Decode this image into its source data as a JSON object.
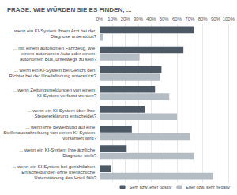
{
  "chart_data": {
    "type": "bar",
    "title": "FRAGE: WIE WÜRDEN SIE ES FINDEN, ...",
    "orientation": "horizontal",
    "categories": [
      "... wenn ein KI-System Ihrem Arzt bei der Diagnose unterstützt?",
      "... mit einem autonomen Fahrzeug, wie einem autonomen Auto oder einem autonomen Bus, unterwegs zu sein?",
      "... wenn ein KI-System bei Gericht den Richter bei der Urteilsfindung unterstützt?",
      "... wenn Zeitungsmeldungen von einem KI-System verfasst werden?",
      "... wenn ein KI-System über Ihre Steuererklärung entscheidet?",
      "... wenn Ihre Bewerbung auf eine Stellenausschreibung von einem KI-System vorsortiert wird?",
      "... wenn ein KI-System Ihre ärztliche Diagnose stellt?",
      "... wenn ein KI-System bei gerichtlichen Entscheidungen ohne menschliche Unterstützung das Urteil fällt?"
    ],
    "series": [
      {
        "name": "Sehr bzw. eher positiv",
        "color": "#4d5a66",
        "values": [
          73,
          65,
          48,
          43,
          35,
          25,
          21,
          9
        ]
      },
      {
        "name": "Eher bzw. sehr negativ",
        "color": "#b4bcc4",
        "values": [
          3,
          31,
          47,
          54,
          60,
          70,
          73,
          88
        ]
      }
    ],
    "xlim": [
      0,
      100
    ],
    "xticks": [
      {
        "value": 0,
        "label": "0%"
      },
      {
        "value": 10,
        "label": "10%"
      },
      {
        "value": 20,
        "label": "20%"
      },
      {
        "value": 30,
        "label": "30%"
      },
      {
        "value": 40,
        "label": "40%"
      },
      {
        "value": 50,
        "label": "50%"
      },
      {
        "value": 60,
        "label": "60%"
      },
      {
        "value": 70,
        "label": "70%"
      },
      {
        "value": 80,
        "label": "80%"
      },
      {
        "value": 90,
        "label": "90%"
      },
      {
        "value": 100,
        "label": "100%"
      }
    ],
    "grid": true,
    "legend": "bottom-right"
  }
}
